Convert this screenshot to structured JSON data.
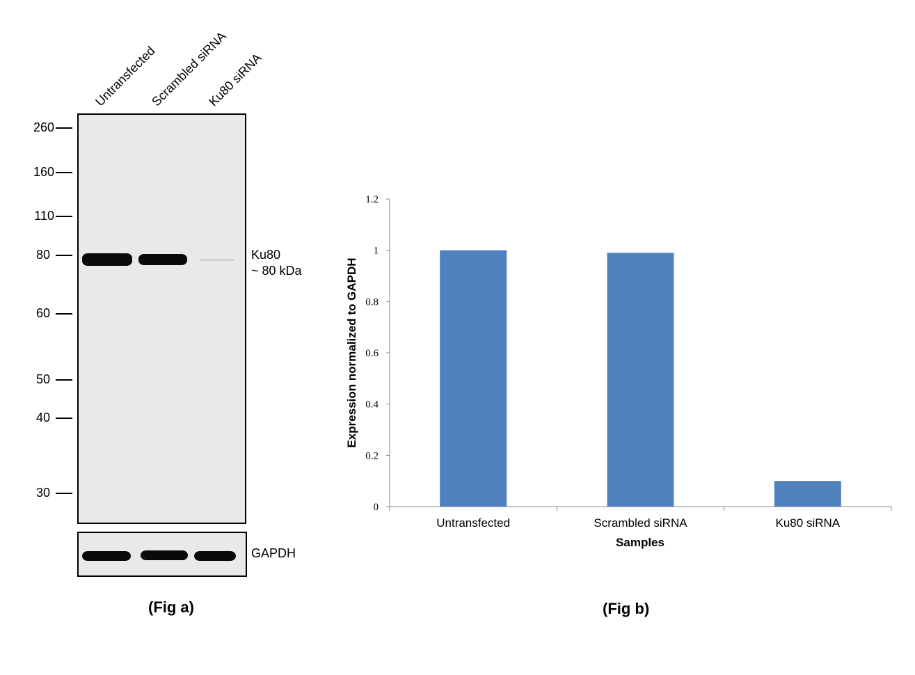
{
  "fig_a": {
    "lanes": [
      "Untransfected",
      "Scrambled siRNA",
      "Ku80 siRNA"
    ],
    "markers": [
      "260",
      "160",
      "110",
      "80",
      "60",
      "50",
      "40",
      "30"
    ],
    "target_label": "Ku80",
    "target_size": "~ 80 kDa",
    "loading_control": "GAPDH",
    "caption": "(Fig a)"
  },
  "fig_b": {
    "caption": "(Fig b)"
  },
  "chart_data": {
    "type": "bar",
    "categories": [
      "Untransfected",
      "Scrambled siRNA",
      "Ku80 siRNA"
    ],
    "values": [
      1.0,
      0.99,
      0.1
    ],
    "xlabel": "Samples",
    "ylabel": "Expression normalized to GAPDH",
    "ylim": [
      0,
      1.2
    ],
    "yticks": [
      "0",
      "0.2",
      "0.4",
      "0.6",
      "0.8",
      "1",
      "1.2"
    ],
    "grid": false,
    "bar_color": "#4f81bd"
  }
}
